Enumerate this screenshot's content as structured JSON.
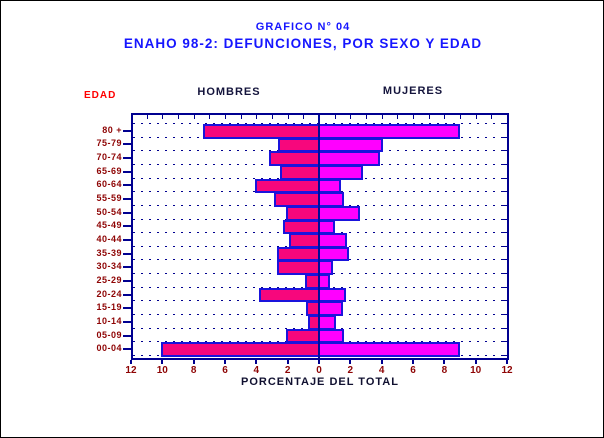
{
  "header": {
    "supertitle": "GRAFICO N° 04",
    "title": "ENAHO 98-2: DEFUNCIONES, POR SEXO Y EDAD"
  },
  "axis_labels": {
    "y_axis_title": "EDAD",
    "x_axis_title": "PORCENTAJE DEL TOTAL",
    "left_column_header": "HOMBRES",
    "right_column_header": "MUJERES"
  },
  "colors": {
    "title_blue": "#1616ff",
    "edad_red": "#ff0000",
    "header_dark": "#14143c",
    "axis_navy": "#000090",
    "tick_label_dark_red": "#8e0404",
    "male_bar_fill": "#f7077c",
    "female_bar_fill": "#ff00ff",
    "bar_border_blue": "#1a14dc"
  },
  "chart_data": {
    "type": "bar",
    "subtype": "population-pyramid",
    "title": "ENAHO 98-2: DEFUNCIONES, POR SEXO Y EDAD",
    "supertitle": "GRAFICO N° 04",
    "xlabel": "PORCENTAJE DEL TOTAL",
    "ylabel": "EDAD",
    "grid": "dotted horizontal lines at each age-row boundary",
    "legend_position": "column headers above plot (HOMBRES left, MUJERES right)",
    "x_axis_range_each_side": [
      0,
      12
    ],
    "x_tick_labels": [
      "12",
      "10",
      "8",
      "6",
      "4",
      "2",
      "0",
      "2",
      "4",
      "6",
      "8",
      "10",
      "12"
    ],
    "categories": [
      "80 +",
      "75-79",
      "70-74",
      "65-69",
      "60-64",
      "55-59",
      "50-54",
      "45-49",
      "40-44",
      "35-39",
      "30-34",
      "25-29",
      "20-24",
      "15-19",
      "10-14",
      "05-09",
      "00-04"
    ],
    "series": [
      {
        "name": "HOMBRES",
        "side": "left",
        "color": "#f7077c",
        "values": [
          7.4,
          2.6,
          3.2,
          2.5,
          4.1,
          2.9,
          2.1,
          2.3,
          1.9,
          2.7,
          2.7,
          0.9,
          3.8,
          0.8,
          0.7,
          2.1,
          10.1
        ]
      },
      {
        "name": "MUJERES",
        "side": "right",
        "color": "#ff00ff",
        "values": [
          9.0,
          4.1,
          3.9,
          2.8,
          1.4,
          1.6,
          2.6,
          1.0,
          1.8,
          1.9,
          0.9,
          0.7,
          1.7,
          1.5,
          1.1,
          1.6,
          9.0
        ]
      }
    ]
  }
}
